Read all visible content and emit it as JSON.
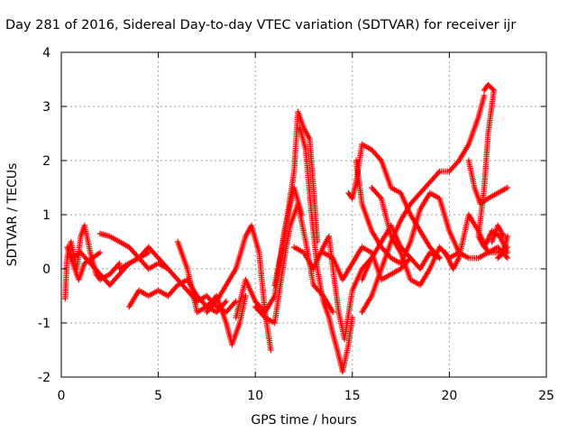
{
  "chart_data": {
    "type": "scatter",
    "title": "Day 281 of 2016, Sidereal Day-to-day VTEC variation (SDTVAR) for receiver ijr",
    "xlabel": "GPS time / hours",
    "ylabel": "SDTVAR / TECUs",
    "xlim": [
      0,
      25
    ],
    "ylim": [
      -2,
      4
    ],
    "xticks": [
      0,
      5,
      10,
      15,
      20,
      25
    ],
    "yticks": [
      -2,
      -1,
      0,
      1,
      2,
      3,
      4
    ],
    "grid": true,
    "marker": "plus",
    "color": "#ff0000",
    "tracks": [
      [
        [
          0.2,
          -0.55
        ],
        [
          0.3,
          0.2
        ],
        [
          0.5,
          0.5
        ],
        [
          0.8,
          0.0
        ],
        [
          1.0,
          0.6
        ],
        [
          1.2,
          0.8
        ],
        [
          1.5,
          0.3
        ],
        [
          1.8,
          -0.1
        ],
        [
          2.0,
          -0.2
        ],
        [
          2.5,
          -0.1
        ],
        [
          3.0,
          0.1
        ]
      ],
      [
        [
          0.3,
          0.4
        ],
        [
          0.6,
          0.1
        ],
        [
          0.9,
          -0.2
        ],
        [
          1.2,
          0.1
        ],
        [
          1.6,
          0.2
        ],
        [
          2.0,
          0.3
        ]
      ],
      [
        [
          0.5,
          0.2
        ],
        [
          1.0,
          0.3
        ],
        [
          1.5,
          0.1
        ],
        [
          2.0,
          -0.1
        ],
        [
          2.5,
          -0.3
        ],
        [
          3.0,
          -0.1
        ],
        [
          3.5,
          0.1
        ],
        [
          4.0,
          0.2
        ],
        [
          4.5,
          0.3
        ]
      ],
      [
        [
          2.0,
          0.65
        ],
        [
          2.5,
          0.6
        ],
        [
          3.0,
          0.5
        ],
        [
          3.5,
          0.4
        ],
        [
          4.0,
          0.2
        ],
        [
          4.5,
          0.0
        ],
        [
          5.0,
          0.1
        ],
        [
          5.5,
          0.0
        ]
      ],
      [
        [
          3.5,
          -0.7
        ],
        [
          4.0,
          -0.4
        ],
        [
          4.5,
          -0.5
        ],
        [
          5.0,
          -0.4
        ],
        [
          5.5,
          -0.5
        ],
        [
          6.0,
          -0.3
        ],
        [
          6.5,
          -0.2
        ],
        [
          7.0,
          -0.5
        ],
        [
          7.5,
          -0.7
        ],
        [
          8.0,
          -0.8
        ],
        [
          8.5,
          -0.6
        ]
      ],
      [
        [
          3.0,
          0.0
        ],
        [
          3.5,
          0.1
        ],
        [
          4.0,
          0.2
        ],
        [
          4.5,
          0.4
        ],
        [
          5.0,
          0.2
        ],
        [
          5.5,
          0.0
        ],
        [
          6.0,
          -0.2
        ],
        [
          6.5,
          -0.4
        ],
        [
          7.0,
          -0.6
        ],
        [
          7.5,
          -0.5
        ],
        [
          8.0,
          -0.7
        ],
        [
          8.5,
          -0.8
        ],
        [
          9.0,
          -0.6
        ]
      ],
      [
        [
          6.0,
          0.5
        ],
        [
          6.5,
          0.0
        ],
        [
          7.0,
          -0.8
        ],
        [
          7.5,
          -0.7
        ],
        [
          8.0,
          -0.5
        ],
        [
          8.5,
          -1.0
        ],
        [
          8.8,
          -1.4
        ],
        [
          9.2,
          -1.0
        ],
        [
          9.5,
          -0.5
        ]
      ],
      [
        [
          7.5,
          -0.8
        ],
        [
          8.0,
          -0.6
        ],
        [
          8.5,
          -0.3
        ],
        [
          9.0,
          0.0
        ],
        [
          9.5,
          0.6
        ],
        [
          9.8,
          0.8
        ],
        [
          10.2,
          0.3
        ],
        [
          10.5,
          -0.8
        ],
        [
          10.8,
          -1.5
        ]
      ],
      [
        [
          9.0,
          -0.9
        ],
        [
          9.5,
          -0.2
        ],
        [
          10.0,
          -0.6
        ],
        [
          10.5,
          -0.8
        ],
        [
          11.0,
          -0.5
        ],
        [
          11.5,
          0.7
        ],
        [
          12.0,
          1.5
        ],
        [
          12.4,
          1.0
        ]
      ],
      [
        [
          10.0,
          -0.7
        ],
        [
          10.5,
          -0.9
        ],
        [
          11.0,
          -1.0
        ],
        [
          11.5,
          0.2
        ],
        [
          11.8,
          0.8
        ],
        [
          12.2,
          1.2
        ],
        [
          12.6,
          0.5
        ],
        [
          13.0,
          -0.3
        ],
        [
          13.5,
          -0.5
        ],
        [
          14.0,
          -0.8
        ]
      ],
      [
        [
          11.0,
          -0.3
        ],
        [
          11.5,
          0.6
        ],
        [
          12.0,
          1.8
        ],
        [
          12.2,
          2.9
        ],
        [
          12.5,
          2.6
        ],
        [
          12.8,
          2.4
        ],
        [
          13.0,
          1.5
        ],
        [
          13.2,
          0.5
        ]
      ],
      [
        [
          12.3,
          2.6
        ],
        [
          12.6,
          2.2
        ],
        [
          12.9,
          1.0
        ],
        [
          13.2,
          0.0
        ],
        [
          13.5,
          -0.6
        ],
        [
          13.8,
          -0.9
        ],
        [
          14.0,
          -1.2
        ],
        [
          14.3,
          -1.6
        ],
        [
          14.5,
          -1.9
        ],
        [
          14.8,
          -1.4
        ],
        [
          15.0,
          -0.9
        ]
      ],
      [
        [
          12.0,
          0.4
        ],
        [
          12.5,
          0.3
        ],
        [
          13.0,
          0.0
        ],
        [
          13.5,
          0.4
        ],
        [
          13.8,
          0.6
        ],
        [
          14.0,
          0.0
        ],
        [
          14.3,
          -0.8
        ],
        [
          14.6,
          -1.3
        ],
        [
          15.0,
          -0.4
        ],
        [
          15.5,
          0.0
        ],
        [
          16.0,
          0.2
        ]
      ],
      [
        [
          13.5,
          0.3
        ],
        [
          14.0,
          0.2
        ],
        [
          14.5,
          -0.2
        ],
        [
          15.0,
          0.1
        ],
        [
          15.5,
          0.4
        ],
        [
          16.0,
          0.3
        ],
        [
          16.5,
          -0.2
        ],
        [
          17.0,
          -0.1
        ],
        [
          17.5,
          0.0
        ],
        [
          18.0,
          0.2
        ]
      ],
      [
        [
          14.8,
          1.4
        ],
        [
          15.0,
          1.3
        ],
        [
          15.2,
          1.6
        ],
        [
          15.5,
          2.3
        ],
        [
          16.0,
          2.2
        ],
        [
          16.5,
          2.0
        ],
        [
          17.0,
          1.5
        ],
        [
          17.5,
          1.4
        ],
        [
          18.0,
          1.0
        ],
        [
          18.5,
          0.7
        ],
        [
          19.0,
          0.4
        ],
        [
          19.5,
          0.2
        ]
      ],
      [
        [
          15.5,
          -0.8
        ],
        [
          16.0,
          -0.5
        ],
        [
          16.5,
          0.0
        ],
        [
          17.0,
          0.5
        ],
        [
          17.5,
          0.9
        ],
        [
          18.0,
          1.2
        ],
        [
          18.5,
          1.4
        ],
        [
          19.0,
          1.6
        ],
        [
          19.5,
          1.8
        ],
        [
          20.0,
          1.8
        ],
        [
          20.5,
          2.0
        ],
        [
          21.0,
          2.3
        ],
        [
          21.5,
          2.8
        ],
        [
          21.8,
          3.2
        ]
      ],
      [
        [
          15.5,
          -0.2
        ],
        [
          16.0,
          0.2
        ],
        [
          16.5,
          0.5
        ],
        [
          17.0,
          0.8
        ],
        [
          17.5,
          0.4
        ],
        [
          18.0,
          0.2
        ],
        [
          18.5,
          0.0
        ],
        [
          19.0,
          0.3
        ],
        [
          19.5,
          0.2
        ]
      ],
      [
        [
          16.0,
          1.5
        ],
        [
          16.5,
          1.3
        ],
        [
          17.0,
          0.6
        ],
        [
          17.5,
          0.3
        ],
        [
          18.0,
          -0.2
        ],
        [
          18.5,
          -0.3
        ],
        [
          19.0,
          0.0
        ],
        [
          19.5,
          0.4
        ],
        [
          20.0,
          0.2
        ],
        [
          20.5,
          0.3
        ],
        [
          21.0,
          0.2
        ],
        [
          21.5,
          0.2
        ],
        [
          22.0,
          0.3
        ],
        [
          22.5,
          0.3
        ],
        [
          23.0,
          0.4
        ]
      ],
      [
        [
          15.2,
          2.0
        ],
        [
          15.5,
          1.2
        ],
        [
          16.0,
          0.7
        ],
        [
          16.5,
          0.4
        ],
        [
          17.0,
          0.2
        ],
        [
          17.5,
          0.1
        ],
        [
          18.0,
          0.5
        ],
        [
          18.5,
          1.1
        ],
        [
          19.0,
          1.4
        ],
        [
          19.5,
          1.3
        ],
        [
          20.0,
          0.7
        ],
        [
          20.5,
          0.3
        ]
      ],
      [
        [
          19.8,
          0.3
        ],
        [
          20.2,
          0.0
        ],
        [
          20.5,
          0.2
        ],
        [
          21.0,
          1.0
        ],
        [
          21.5,
          0.7
        ],
        [
          22.0,
          0.3
        ],
        [
          22.5,
          0.4
        ],
        [
          23.0,
          0.2
        ]
      ],
      [
        [
          21.0,
          2.0
        ],
        [
          21.3,
          1.5
        ],
        [
          21.6,
          1.2
        ],
        [
          22.0,
          1.3
        ],
        [
          22.5,
          1.4
        ],
        [
          23.0,
          1.5
        ]
      ],
      [
        [
          21.8,
          3.3
        ],
        [
          22.0,
          3.4
        ],
        [
          22.3,
          3.3
        ],
        [
          22.0,
          2.5
        ],
        [
          21.8,
          1.5
        ],
        [
          21.5,
          0.6
        ],
        [
          21.8,
          0.4
        ],
        [
          22.2,
          0.7
        ],
        [
          22.6,
          0.6
        ],
        [
          23.0,
          0.3
        ]
      ],
      [
        [
          22.2,
          0.5
        ],
        [
          22.5,
          0.8
        ],
        [
          22.8,
          0.6
        ],
        [
          23.0,
          0.6
        ],
        [
          22.8,
          0.3
        ],
        [
          22.5,
          0.2
        ]
      ]
    ]
  }
}
